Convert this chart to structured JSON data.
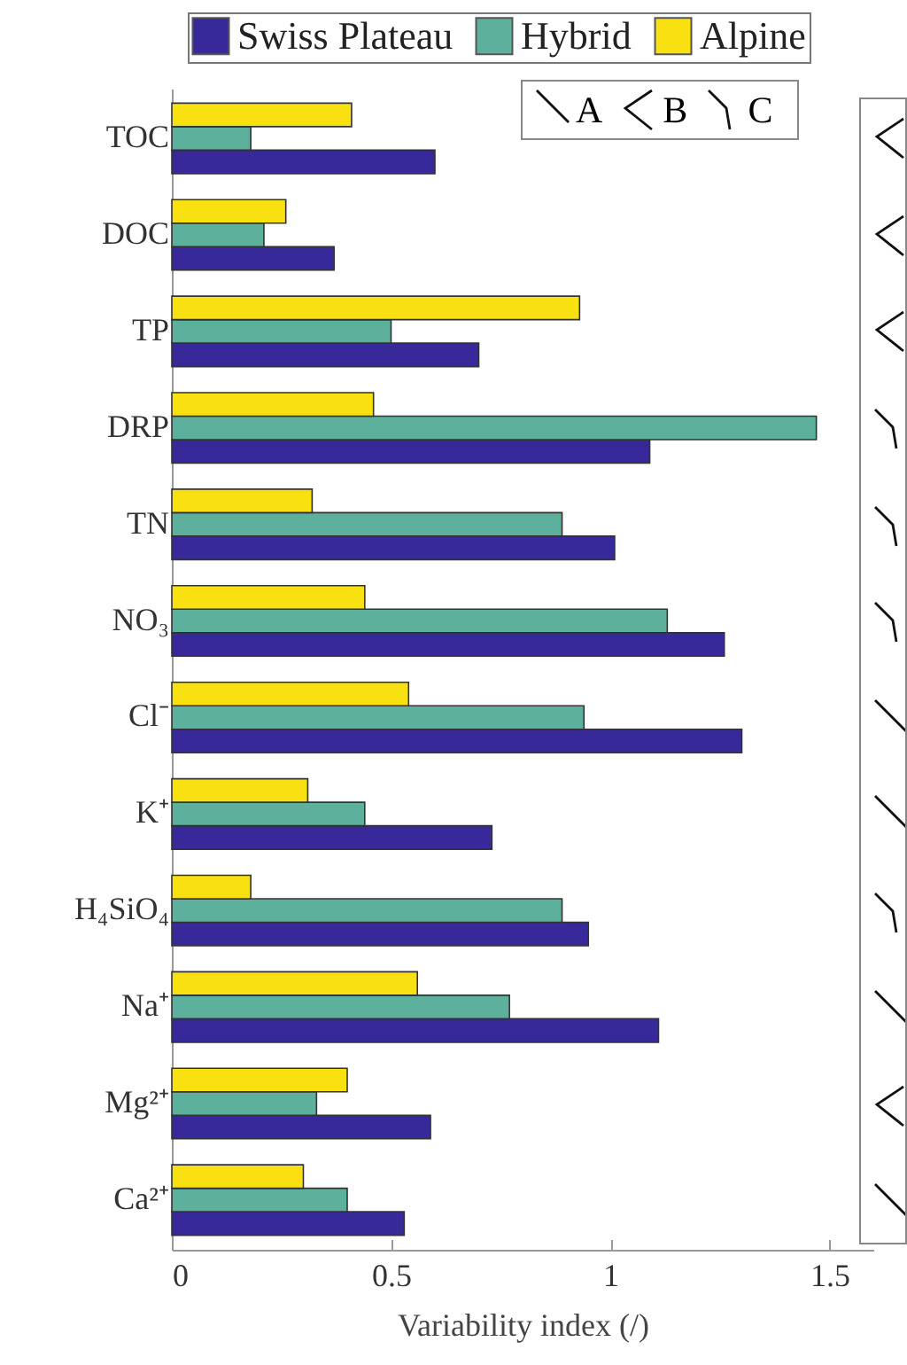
{
  "chart_data": {
    "type": "bar",
    "orientation": "horizontal",
    "xlabel": "Variability index (/)",
    "categories": [
      "TOC",
      "DOC",
      "TP",
      "DRP",
      "TN",
      "NO₃",
      "Cl⁻",
      "K⁺",
      "H₄SiO₄",
      "Na⁺",
      "Mg²⁺",
      "Ca²⁺"
    ],
    "series": [
      {
        "name": "Swiss Plateau",
        "color": "#38299a",
        "values": [
          0.6,
          0.37,
          0.7,
          1.09,
          1.01,
          1.26,
          1.3,
          0.73,
          0.95,
          1.11,
          0.59,
          0.53
        ]
      },
      {
        "name": "Hybrid",
        "color": "#5cb09c",
        "values": [
          0.18,
          0.21,
          0.5,
          1.47,
          0.89,
          1.13,
          0.94,
          0.44,
          0.89,
          0.77,
          0.33,
          0.4
        ]
      },
      {
        "name": "Alpine",
        "color": "#f9e010",
        "values": [
          0.41,
          0.26,
          0.93,
          0.46,
          0.32,
          0.44,
          0.54,
          0.31,
          0.18,
          0.56,
          0.4,
          0.3
        ]
      }
    ],
    "xlim": [
      0,
      1.6
    ],
    "xticks": [
      0,
      0.5,
      1,
      1.5
    ],
    "grid": false,
    "legend": "top",
    "annotations": [
      "A",
      "B",
      "C"
    ]
  }
}
